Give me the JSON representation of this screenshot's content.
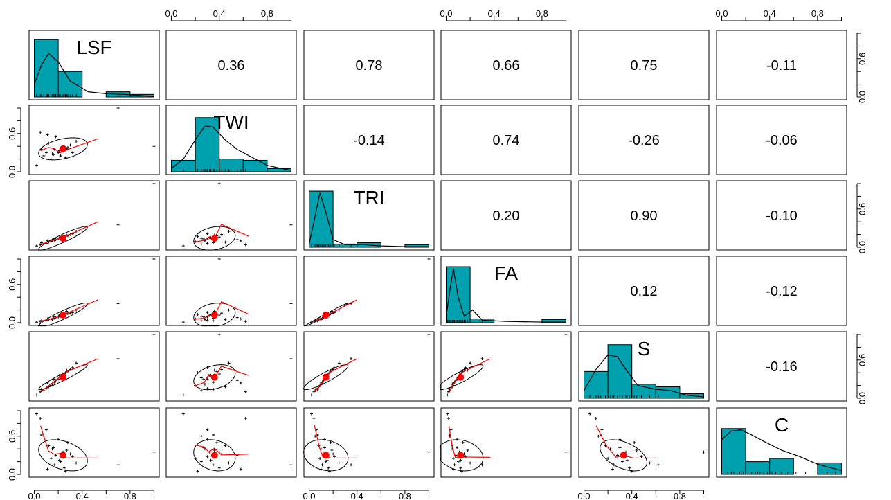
{
  "chart_data": {
    "type": "scatter_matrix",
    "variables": [
      "LSF",
      "TWI",
      "TRI",
      "FA",
      "S",
      "C"
    ],
    "axis_ticks": [
      "0.0",
      "0.4",
      "0.8"
    ],
    "axis_ticks_rotated": [
      "0.0",
      "0.6"
    ],
    "colors": {
      "histogram_fill": "#00A1AE",
      "density_line": "#000000",
      "scatter_point": "#000000",
      "smooth_line": "#FF0000",
      "mean_point": "#FF0000",
      "ellipse": "#000000",
      "frame": "#000000"
    },
    "correlations": [
      {
        "row": "LSF",
        "col": "TWI",
        "label": "0.36"
      },
      {
        "row": "LSF",
        "col": "TRI",
        "label": "0.78"
      },
      {
        "row": "LSF",
        "col": "FA",
        "label": "0.66"
      },
      {
        "row": "LSF",
        "col": "S",
        "label": "0.75"
      },
      {
        "row": "LSF",
        "col": "C",
        "label": "-0.11"
      },
      {
        "row": "TWI",
        "col": "TRI",
        "label": "-0.14"
      },
      {
        "row": "TWI",
        "col": "FA",
        "label": "0.74"
      },
      {
        "row": "TWI",
        "col": "S",
        "label": "-0.26"
      },
      {
        "row": "TWI",
        "col": "C",
        "label": "-0.06"
      },
      {
        "row": "TRI",
        "col": "FA",
        "label": "0.20"
      },
      {
        "row": "TRI",
        "col": "S",
        "label": "0.90"
      },
      {
        "row": "TRI",
        "col": "C",
        "label": "-0.10"
      },
      {
        "row": "FA",
        "col": "S",
        "label": "0.12"
      },
      {
        "row": "FA",
        "col": "C",
        "label": "-0.12"
      },
      {
        "row": "S",
        "col": "C",
        "label": "-0.16"
      }
    ],
    "histograms": {
      "LSF": {
        "breaks": [
          0,
          0.2,
          0.4,
          0.6,
          0.8,
          1.0
        ],
        "heights": [
          0.9,
          0.4,
          0.0,
          0.08,
          0.04
        ],
        "density": [
          [
            0,
            0.2
          ],
          [
            0.06,
            0.5
          ],
          [
            0.12,
            0.68
          ],
          [
            0.2,
            0.55
          ],
          [
            0.3,
            0.25
          ],
          [
            0.45,
            0.08
          ],
          [
            0.6,
            0.05
          ],
          [
            0.75,
            0.04
          ],
          [
            0.9,
            0.02
          ],
          [
            1.0,
            0.01
          ]
        ]
      },
      "TWI": {
        "breaks": [
          0,
          0.2,
          0.4,
          0.6,
          0.8,
          1.0
        ],
        "heights": [
          0.18,
          0.85,
          0.2,
          0.18,
          0.05
        ],
        "density": [
          [
            0,
            0.05
          ],
          [
            0.1,
            0.2
          ],
          [
            0.2,
            0.5
          ],
          [
            0.28,
            0.72
          ],
          [
            0.35,
            0.7
          ],
          [
            0.45,
            0.5
          ],
          [
            0.55,
            0.35
          ],
          [
            0.65,
            0.25
          ],
          [
            0.8,
            0.1
          ],
          [
            1.0,
            0.02
          ]
        ]
      },
      "TRI": {
        "breaks": [
          0,
          0.2,
          0.4,
          0.6,
          0.8,
          1.0
        ],
        "heights": [
          0.88,
          0.05,
          0.07,
          0.0,
          0.04
        ],
        "density": [
          [
            0,
            0.05
          ],
          [
            0.04,
            0.4
          ],
          [
            0.09,
            0.85
          ],
          [
            0.14,
            0.55
          ],
          [
            0.2,
            0.12
          ],
          [
            0.3,
            0.04
          ],
          [
            0.45,
            0.04
          ],
          [
            0.6,
            0.02
          ],
          [
            0.8,
            0.01
          ],
          [
            1.0,
            0.01
          ]
        ]
      },
      "FA": {
        "breaks": [
          0,
          0.2,
          0.4,
          0.6,
          0.8,
          1.0
        ],
        "heights": [
          0.88,
          0.06,
          0.0,
          0.0,
          0.05
        ],
        "density": [
          [
            0,
            0.1
          ],
          [
            0.03,
            0.5
          ],
          [
            0.06,
            0.85
          ],
          [
            0.1,
            0.4
          ],
          [
            0.15,
            0.1
          ],
          [
            0.22,
            0.2
          ],
          [
            0.3,
            0.04
          ],
          [
            0.5,
            0.02
          ],
          [
            0.8,
            0.01
          ],
          [
            1.0,
            0.01
          ]
        ]
      },
      "S": {
        "breaks": [
          0,
          0.2,
          0.4,
          0.6,
          0.8,
          1.0
        ],
        "heights": [
          0.42,
          0.84,
          0.22,
          0.18,
          0.07
        ],
        "density": [
          [
            0,
            0.12
          ],
          [
            0.1,
            0.45
          ],
          [
            0.2,
            0.68
          ],
          [
            0.28,
            0.65
          ],
          [
            0.35,
            0.45
          ],
          [
            0.45,
            0.2
          ],
          [
            0.6,
            0.14
          ],
          [
            0.72,
            0.12
          ],
          [
            0.85,
            0.05
          ],
          [
            1.0,
            0.02
          ]
        ]
      },
      "C": {
        "breaks": [
          0,
          0.2,
          0.4,
          0.6,
          0.8,
          1.0
        ],
        "heights": [
          0.72,
          0.2,
          0.25,
          0.0,
          0.18
        ],
        "density": [
          [
            0,
            0.55
          ],
          [
            0.08,
            0.68
          ],
          [
            0.16,
            0.7
          ],
          [
            0.25,
            0.62
          ],
          [
            0.35,
            0.52
          ],
          [
            0.5,
            0.38
          ],
          [
            0.65,
            0.28
          ],
          [
            0.8,
            0.16
          ],
          [
            0.92,
            0.1
          ],
          [
            1.0,
            0.06
          ]
        ]
      }
    },
    "means": {
      "LSF": 0.24,
      "TWI": 0.36,
      "TRI": 0.14,
      "FA": 0.12,
      "S": 0.33,
      "C": 0.3
    },
    "points": {
      "LSF": [
        0.02,
        0.05,
        0.08,
        0.1,
        0.12,
        0.14,
        0.15,
        0.17,
        0.18,
        0.2,
        0.22,
        0.24,
        0.25,
        0.26,
        0.28,
        0.3,
        0.32,
        0.35,
        0.06,
        0.11,
        0.16,
        0.21,
        0.27,
        0.7,
        1.0
      ],
      "TWI": [
        0.1,
        0.62,
        0.25,
        0.3,
        0.45,
        0.2,
        0.28,
        0.35,
        0.55,
        0.3,
        0.25,
        0.32,
        0.4,
        0.22,
        0.38,
        0.42,
        0.3,
        0.48,
        0.35,
        0.58,
        0.27,
        0.33,
        0.36,
        1.0,
        0.4
      ],
      "TRI": [
        0.02,
        0.04,
        0.05,
        0.06,
        0.08,
        0.09,
        0.1,
        0.11,
        0.12,
        0.13,
        0.14,
        0.15,
        0.16,
        0.17,
        0.18,
        0.2,
        0.21,
        0.25,
        0.07,
        0.1,
        0.13,
        0.15,
        0.19,
        0.35,
        1.0
      ],
      "FA": [
        0.01,
        0.02,
        0.03,
        0.04,
        0.05,
        0.06,
        0.05,
        0.07,
        0.08,
        0.09,
        0.1,
        0.11,
        0.12,
        0.13,
        0.14,
        0.15,
        0.16,
        0.2,
        0.03,
        0.06,
        0.09,
        0.12,
        0.18,
        0.3,
        1.0
      ],
      "S": [
        0.05,
        0.1,
        0.12,
        0.15,
        0.18,
        0.2,
        0.22,
        0.25,
        0.28,
        0.3,
        0.32,
        0.35,
        0.38,
        0.4,
        0.42,
        0.45,
        0.48,
        0.55,
        0.14,
        0.24,
        0.3,
        0.36,
        0.44,
        0.62,
        1.0
      ],
      "C": [
        0.95,
        0.88,
        0.6,
        0.7,
        0.45,
        0.25,
        0.4,
        0.15,
        0.3,
        0.55,
        0.2,
        0.35,
        0.1,
        0.05,
        0.5,
        0.32,
        0.28,
        0.18,
        0.62,
        0.08,
        0.42,
        0.22,
        0.38,
        0.15,
        0.35
      ]
    }
  }
}
